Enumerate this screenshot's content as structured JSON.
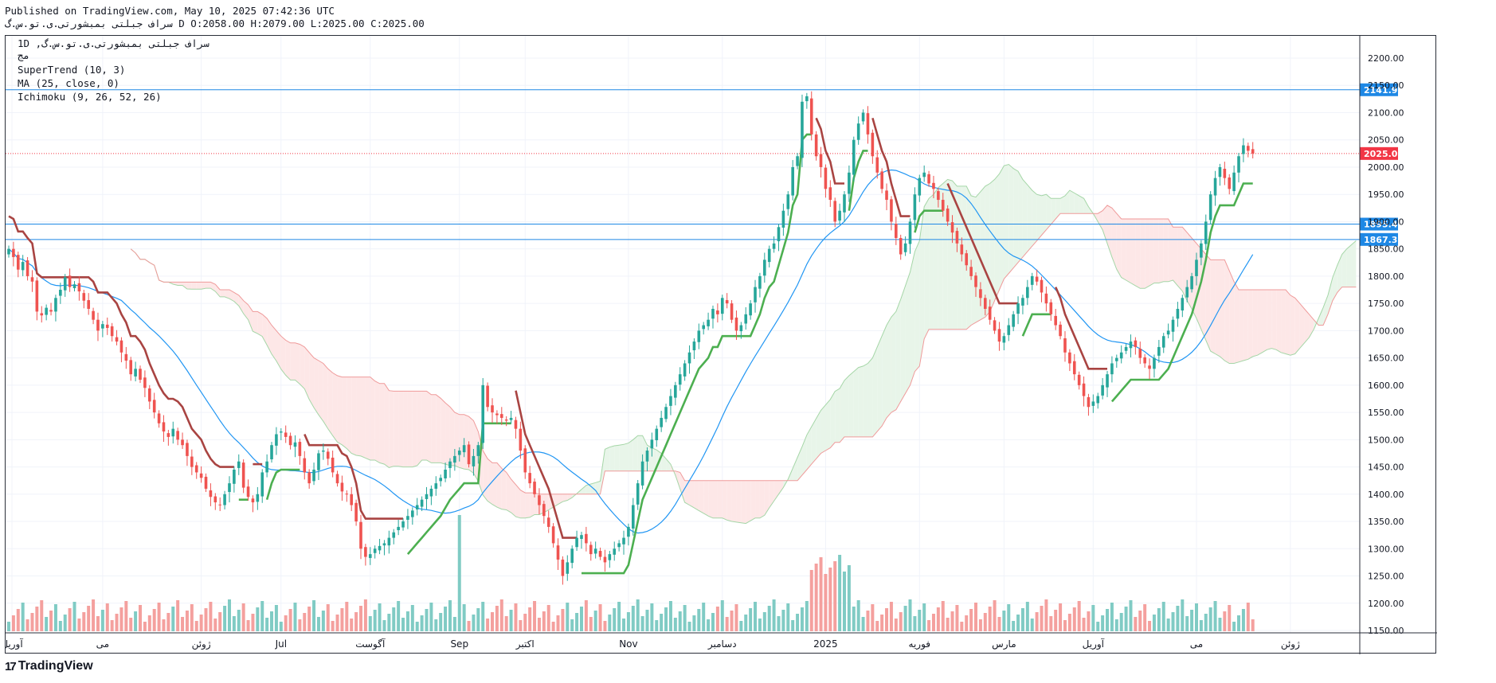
{
  "header": {
    "published": "Published on TradingView.com, May 10, 2025 07:42:36 UTC",
    "ohlc": "سراف جبلتی بمبشورتی.ی.تو.س.گ D O:2058.00 H:2079.00 L:2025.00 C:2025.00"
  },
  "legend": {
    "symbol": "1D ,سراف جبلتی بمبشورتی.ی.تو.س.گ",
    "exchange": "مج",
    "indicator1": "SuperTrend (10, 3)",
    "indicator2": "MA (25, close, 0)",
    "indicator3": "Ichimoku (9, 26, 52, 26)"
  },
  "footer": {
    "brand": "TradingView",
    "mark": "17"
  },
  "colors": {
    "up": "#26a69a",
    "down": "#ef5350",
    "supertrend_up": "#4caf50",
    "supertrend_down": "#a94442",
    "ma": "#2196f3",
    "hline": "#1e88e5",
    "price_tag": "#f23645",
    "cloud_bull": "#e8f5e9",
    "cloud_bear": "#fde7e7"
  },
  "chart_data": {
    "type": "candlestick",
    "yticks": [
      2200,
      2150,
      2100,
      2050,
      2000,
      1950,
      1900,
      1850,
      1800,
      1750,
      1700,
      1650,
      1600,
      1550,
      1500,
      1450,
      1400,
      1350,
      1300,
      1250,
      1200,
      1150
    ],
    "ytick_labels": [
      "2200.00",
      "2150.00",
      "2100.00",
      "2050.00",
      "2000.00",
      "1950.00",
      "1900.00",
      "1850.00",
      "1800.00",
      "1750.00",
      "1700.00",
      "1650.00",
      "1600.00",
      "1550.00",
      "1500.00",
      "1450.00",
      "1400.00",
      "1350.00",
      "1300.00",
      "1250.00",
      "1200.00",
      "1150.00"
    ],
    "xticks": [
      {
        "label": "آوریل",
        "idx": 0
      },
      {
        "label": "می",
        "idx": 20
      },
      {
        "label": "ژوئن",
        "idx": 41
      },
      {
        "label": "Jul",
        "idx": 58
      },
      {
        "label": "آگوست",
        "idx": 77
      },
      {
        "label": "Sep",
        "idx": 96
      },
      {
        "label": "اکتبر",
        "idx": 110
      },
      {
        "label": "Nov",
        "idx": 132
      },
      {
        "label": "دسامبر",
        "idx": 152
      },
      {
        "label": "2025",
        "idx": 174
      },
      {
        "label": "فوریه",
        "idx": 194
      },
      {
        "label": "مارس",
        "idx": 212
      },
      {
        "label": "آوریل",
        "idx": 231
      },
      {
        "label": "می",
        "idx": 253
      },
      {
        "label": "ژوئن",
        "idx": 273
      }
    ],
    "hlines": [
      {
        "value": 2141.94,
        "label": "2141.94"
      },
      {
        "value": 1895.49,
        "label": "1895.49"
      },
      {
        "value": 1867.31,
        "label": "1867.31"
      }
    ],
    "last_price": {
      "value": 2025,
      "label": "2025.00"
    },
    "closes": [
      1850,
      1835,
      1812,
      1826,
      1800,
      1790,
      1735,
      1728,
      1742,
      1735,
      1760,
      1775,
      1798,
      1780,
      1785,
      1772,
      1755,
      1740,
      1720,
      1700,
      1712,
      1705,
      1690,
      1680,
      1660,
      1645,
      1620,
      1630,
      1610,
      1595,
      1570,
      1550,
      1530,
      1515,
      1505,
      1520,
      1500,
      1490,
      1470,
      1450,
      1440,
      1430,
      1410,
      1395,
      1385,
      1380,
      1400,
      1420,
      1445,
      1460,
      1412,
      1395,
      1385,
      1400,
      1440,
      1460,
      1490,
      1510,
      1515,
      1505,
      1490,
      1495,
      1470,
      1440,
      1420,
      1445,
      1475,
      1480,
      1465,
      1440,
      1420,
      1405,
      1400,
      1380,
      1350,
      1300,
      1285,
      1290,
      1300,
      1305,
      1310,
      1320,
      1330,
      1340,
      1350,
      1360,
      1370,
      1380,
      1390,
      1400,
      1410,
      1420,
      1430,
      1445,
      1460,
      1470,
      1480,
      1490,
      1455,
      1470,
      1490,
      1600,
      1560,
      1550,
      1545,
      1540,
      1535,
      1540,
      1520,
      1480,
      1440,
      1420,
      1400,
      1380,
      1360,
      1340,
      1310,
      1280,
      1250,
      1275,
      1300,
      1320,
      1325,
      1310,
      1290,
      1300,
      1285,
      1275,
      1290,
      1300,
      1310,
      1320,
      1340,
      1380,
      1420,
      1460,
      1480,
      1500,
      1520,
      1540,
      1560,
      1580,
      1600,
      1620,
      1640,
      1660,
      1680,
      1700,
      1710,
      1720,
      1740,
      1730,
      1760,
      1750,
      1720,
      1700,
      1710,
      1730,
      1750,
      1780,
      1800,
      1830,
      1850,
      1860,
      1890,
      1920,
      1950,
      2000,
      2020,
      2120,
      2130,
      2060,
      2020,
      2000,
      1960,
      1940,
      1900,
      1920,
      1950,
      1990,
      2050,
      2080,
      2100,
      2060,
      2020,
      1990,
      1960,
      1940,
      1900,
      1870,
      1840,
      1860,
      1900,
      1950,
      1980,
      1990,
      1970,
      1960,
      1940,
      1920,
      1900,
      1880,
      1860,
      1840,
      1820,
      1800,
      1780,
      1760,
      1740,
      1720,
      1700,
      1680,
      1690,
      1710,
      1730,
      1750,
      1760,
      1780,
      1800,
      1790,
      1770,
      1750,
      1730,
      1710,
      1690,
      1660,
      1640,
      1620,
      1600,
      1580,
      1560,
      1570,
      1580,
      1600,
      1620,
      1640,
      1650,
      1660,
      1670,
      1680,
      1670,
      1650,
      1640,
      1630,
      1650,
      1670,
      1690,
      1700,
      1720,
      1740,
      1760,
      1780,
      1800,
      1830,
      1860,
      1900,
      1950,
      1980,
      2000,
      1980,
      1960,
      1990,
      2020,
      2040,
      2030,
      2025
    ]
  }
}
